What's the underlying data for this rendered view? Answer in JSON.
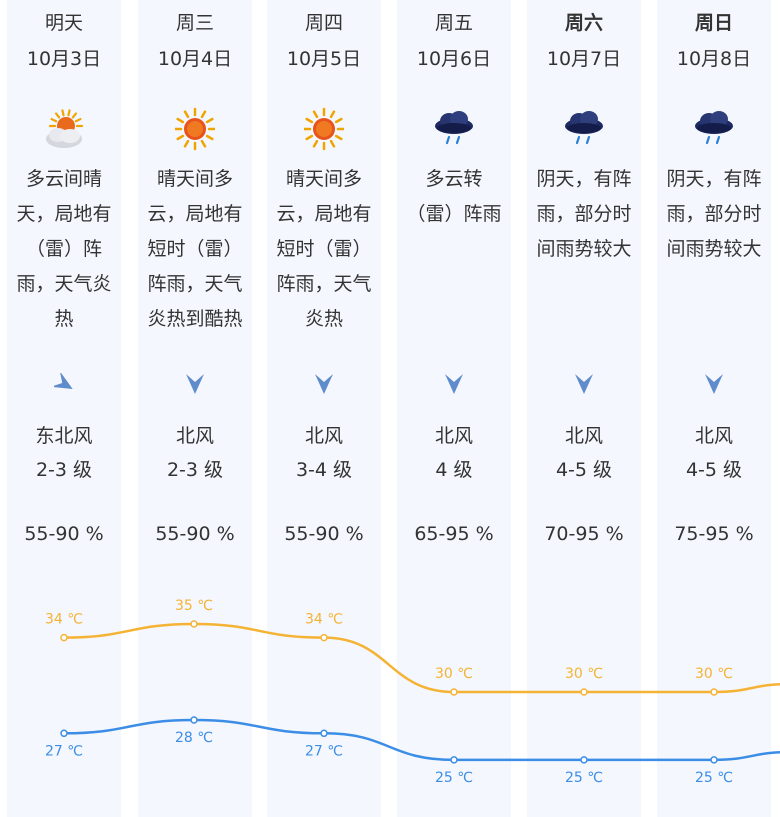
{
  "days": [
    {
      "name": "明天",
      "bold": false,
      "date": "10月3日",
      "icon": "partly-cloudy-sun-icon",
      "desc": "多云间晴天，局地有（雷）阵雨，天气炎热",
      "wind_icon": "wind-direction-northeast-arrow-icon",
      "wind": "东北风",
      "level": "2-3 级",
      "humidity": "55-90 %",
      "high": "34 ℃",
      "low": "27 ℃",
      "high_value": 34,
      "low_value": 27
    },
    {
      "name": "周三",
      "bold": false,
      "date": "10月4日",
      "icon": "sun-icon",
      "desc": "晴天间多云，局地有短时（雷）阵雨，天气炎热到酷热",
      "wind_icon": "wind-direction-north-arrow-icon",
      "wind": "北风",
      "level": "2-3 级",
      "humidity": "55-90 %",
      "high": "35 ℃",
      "low": "28 ℃",
      "high_value": 35,
      "low_value": 28
    },
    {
      "name": "周四",
      "bold": false,
      "date": "10月5日",
      "icon": "sun-icon",
      "desc": "晴天间多云，局地有短时（雷）阵雨，天气炎热",
      "wind_icon": "wind-direction-north-arrow-icon",
      "wind": "北风",
      "level": "3-4 级",
      "humidity": "55-90 %",
      "high": "34 ℃",
      "low": "27 ℃",
      "high_value": 34,
      "low_value": 27
    },
    {
      "name": "周五",
      "bold": false,
      "date": "10月6日",
      "icon": "rain-cloud-icon",
      "desc": "多云转（雷）阵雨",
      "wind_icon": "wind-direction-north-arrow-icon",
      "wind": "北风",
      "level": "4 级",
      "humidity": "65-95 %",
      "high": "30 ℃",
      "low": "25 ℃",
      "high_value": 30,
      "low_value": 25
    },
    {
      "name": "周六",
      "bold": true,
      "date": "10月7日",
      "icon": "rain-cloud-icon",
      "desc": "阴天，有阵雨，部分时间雨势较大",
      "wind_icon": "wind-direction-north-arrow-icon",
      "wind": "北风",
      "level": "4-5 级",
      "humidity": "70-95 %",
      "high": "30 ℃",
      "low": "25 ℃",
      "high_value": 30,
      "low_value": 25
    },
    {
      "name": "周日",
      "bold": true,
      "date": "10月8日",
      "icon": "rain-cloud-icon",
      "desc": "阴天，有阵雨，部分时间雨势较大",
      "wind_icon": "wind-direction-north-arrow-icon",
      "wind": "北风",
      "level": "4-5 级",
      "humidity": "75-95 %",
      "high": "30 ℃",
      "low": "25 ℃",
      "high_value": 30,
      "low_value": 25
    }
  ],
  "colors": {
    "high_line": "#f5b335",
    "low_line": "#3b8de6",
    "column_bg": "#f4f7fd",
    "arrow": "#5f8ccb",
    "text": "#333333"
  }
}
